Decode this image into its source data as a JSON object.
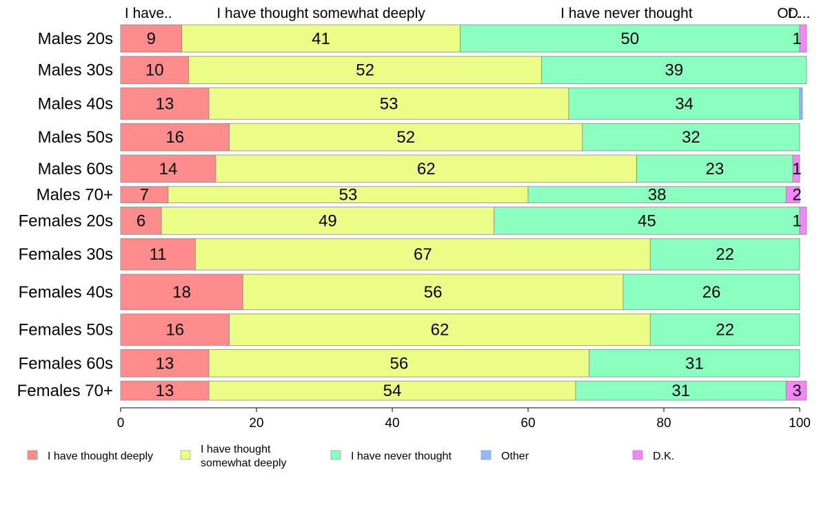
{
  "chart_data": {
    "type": "bar",
    "orientation": "horizontal",
    "stacked": true,
    "categories": [
      "Males 20s",
      "Males 30s",
      "Males 40s",
      "Males 50s",
      "Males 60s",
      "Males 70+",
      "Females 20s",
      "Females 30s",
      "Females 40s",
      "Females 50s",
      "Females 60s",
      "Females 70+"
    ],
    "category_weights": [
      40,
      40,
      46,
      40,
      40,
      24,
      40,
      46,
      52,
      46,
      40,
      28
    ],
    "series": [
      {
        "name": "I have thought deeply",
        "color": "#ff8c8c",
        "values": [
          9,
          10,
          13,
          16,
          14,
          7,
          6,
          11,
          18,
          16,
          13,
          13
        ]
      },
      {
        "name": "I have thought somewhat deeply",
        "color": "#ebfd86",
        "values": [
          41,
          52,
          53,
          52,
          62,
          53,
          49,
          67,
          56,
          62,
          56,
          54
        ]
      },
      {
        "name": "I have never thought",
        "color": "#8affc0",
        "values": [
          50,
          39,
          34,
          32,
          23,
          38,
          45,
          22,
          26,
          22,
          31,
          31
        ]
      },
      {
        "name": "Other",
        "color": "#8fbcff",
        "values": [
          0,
          0,
          0.4,
          0,
          0,
          0,
          0,
          0,
          0,
          0,
          0,
          0
        ]
      },
      {
        "name": "D.K.",
        "color": "#f486fa",
        "values": [
          1,
          0,
          0,
          0,
          1,
          2,
          1,
          0,
          0,
          0,
          0,
          3
        ]
      }
    ],
    "top_labels": [
      "I have..",
      "I have thought somewhat deeply",
      "I have never thought",
      "Ot..",
      "D..."
    ],
    "data_labels": [
      [
        "9",
        "41",
        "50",
        "",
        "1"
      ],
      [
        "10",
        "52",
        "39",
        "",
        ""
      ],
      [
        "13",
        "53",
        "34",
        "",
        ""
      ],
      [
        "16",
        "52",
        "32",
        "",
        ""
      ],
      [
        "14",
        "62",
        "23",
        "",
        "1"
      ],
      [
        "7",
        "53",
        "38",
        "",
        "2"
      ],
      [
        "6",
        "49",
        "45",
        "",
        "1"
      ],
      [
        "11",
        "67",
        "22",
        "",
        ""
      ],
      [
        "18",
        "56",
        "26",
        "",
        ""
      ],
      [
        "16",
        "62",
        "22",
        "",
        ""
      ],
      [
        "13",
        "56",
        "31",
        "",
        ""
      ],
      [
        "13",
        "54",
        "31",
        "",
        "3"
      ]
    ],
    "xlim": [
      0,
      100
    ],
    "xticks": [
      0,
      20,
      40,
      60,
      80,
      100
    ],
    "xtick_labels": [
      "0",
      "20",
      "40",
      "60",
      "80",
      "100"
    ],
    "legend_labels": [
      [
        "I have thought deeply"
      ],
      [
        "I have thought",
        "somewhat deeply"
      ],
      [
        "I have never thought"
      ],
      [
        "Other"
      ],
      [
        "D.K."
      ]
    ],
    "legend_position": "bottom",
    "grid": false
  }
}
